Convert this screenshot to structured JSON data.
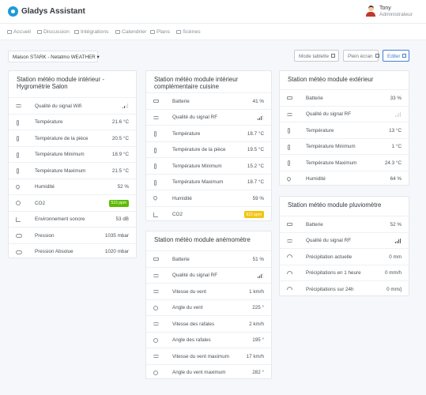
{
  "header": {
    "brand": "Gladys Assistant",
    "user_name": "Tony",
    "user_role": "Administrateur"
  },
  "nav": [
    {
      "label": "Accueil",
      "icon": "home-icon"
    },
    {
      "label": "Discussion",
      "icon": "chat-icon"
    },
    {
      "label": "Intégrations",
      "icon": "grid-icon"
    },
    {
      "label": "Calendrier",
      "icon": "calendar-icon"
    },
    {
      "label": "Plans",
      "icon": "map-icon"
    },
    {
      "label": "Scènes",
      "icon": "play-icon"
    }
  ],
  "toolbar": {
    "house_select": "Maison STARK - Netatmo WEATHER",
    "tablet_mode": "Mode tablette",
    "fullscreen": "Plein écran",
    "edit": "Editer"
  },
  "colors": {
    "accent": "#467fcf",
    "badge_green": "#5eba00",
    "badge_yellow": "#f1c40f"
  },
  "cards": [
    {
      "title": "Station météo module intérieur - Hygrométrie Salon",
      "rows": [
        {
          "label": "Qualité du signal Wifi",
          "value": "",
          "icon": "wifi-icon",
          "signal": 2
        },
        {
          "label": "Température",
          "value": "21.6 °C",
          "icon": "thermometer-icon"
        },
        {
          "label": "Température de la pièce",
          "value": "20.5 °C",
          "icon": "thermometer-icon"
        },
        {
          "label": "Température Minimum",
          "value": "18.9 °C",
          "icon": "thermometer-icon"
        },
        {
          "label": "Température Maximum",
          "value": "21.5 °C",
          "icon": "thermometer-icon"
        },
        {
          "label": "Humidité",
          "value": "52 %",
          "icon": "droplet-icon"
        },
        {
          "label": "CO2",
          "value": "515 ppm",
          "icon": "co2-icon",
          "badge": "green"
        },
        {
          "label": "Environnement sonore",
          "value": "53 dB",
          "icon": "bar-chart-icon"
        },
        {
          "label": "Pression",
          "value": "1035 mbar",
          "icon": "cloud-icon"
        },
        {
          "label": "Pression Absolue",
          "value": "1020 mbar",
          "icon": "cloud-icon"
        }
      ]
    },
    {
      "title": "Station météo module intérieur complémentaire cuisine",
      "rows": [
        {
          "label": "Batterie",
          "value": "41 %",
          "icon": "battery-icon"
        },
        {
          "label": "Qualité du signal RF",
          "value": "",
          "icon": "radio-signal-icon",
          "signal": 3
        },
        {
          "label": "Température",
          "value": "18.7 °C",
          "icon": "thermometer-icon"
        },
        {
          "label": "Température de la pièce",
          "value": "19.5 °C",
          "icon": "thermometer-icon"
        },
        {
          "label": "Température Minimum",
          "value": "15.2 °C",
          "icon": "thermometer-icon"
        },
        {
          "label": "Température Maximum",
          "value": "18.7 °C",
          "icon": "thermometer-icon"
        },
        {
          "label": "Humidité",
          "value": "59 %",
          "icon": "droplet-icon"
        },
        {
          "label": "CO2",
          "value": "822 ppm",
          "icon": "bar-chart-icon",
          "badge": "yellow"
        }
      ]
    },
    {
      "title": "Station météo module anémomètre",
      "rows": [
        {
          "label": "Batterie",
          "value": "51 %",
          "icon": "battery-icon"
        },
        {
          "label": "Qualité du signal RF",
          "value": "",
          "icon": "radio-signal-icon",
          "signal": 3
        },
        {
          "label": "Vitesse du vent",
          "value": "1 km/h",
          "icon": "wind-icon"
        },
        {
          "label": "Angle du vent",
          "value": "225 °",
          "icon": "rotate-icon"
        },
        {
          "label": "Vitesse des rafales",
          "value": "2 km/h",
          "icon": "wind-icon"
        },
        {
          "label": "Angle des rafales",
          "value": "195 °",
          "icon": "rotate-icon"
        },
        {
          "label": "Vitesse du vent maximum",
          "value": "17 km/h",
          "icon": "wind-icon"
        },
        {
          "label": "Angle du vent maximum",
          "value": "282 °",
          "icon": "rotate-icon"
        }
      ]
    },
    {
      "title": "Station météo module extérieur",
      "rows": [
        {
          "label": "Batterie",
          "value": "33 %",
          "icon": "battery-icon"
        },
        {
          "label": "Qualité du signal RF",
          "value": "",
          "icon": "radio-signal-icon",
          "signal": 0
        },
        {
          "label": "Température",
          "value": "13 °C",
          "icon": "thermometer-icon"
        },
        {
          "label": "Température Minimum",
          "value": "1 °C",
          "icon": "thermometer-icon"
        },
        {
          "label": "Température Maximum",
          "value": "24.3 °C",
          "icon": "thermometer-icon"
        },
        {
          "label": "Humidité",
          "value": "64 %",
          "icon": "droplet-icon"
        }
      ]
    },
    {
      "title": "Station météo module pluviomètre",
      "rows": [
        {
          "label": "Batterie",
          "value": "52 %",
          "icon": "battery-icon"
        },
        {
          "label": "Qualité du signal RF",
          "value": "",
          "icon": "radio-signal-icon",
          "signal": 4
        },
        {
          "label": "Précipitation actuelle",
          "value": "0 mm",
          "icon": "umbrella-icon"
        },
        {
          "label": "Précipitations en 1 heure",
          "value": "0 mm/h",
          "icon": "umbrella-icon"
        },
        {
          "label": "Précipitations sur 24h",
          "value": "0 mm/j",
          "icon": "umbrella-icon"
        }
      ]
    }
  ]
}
